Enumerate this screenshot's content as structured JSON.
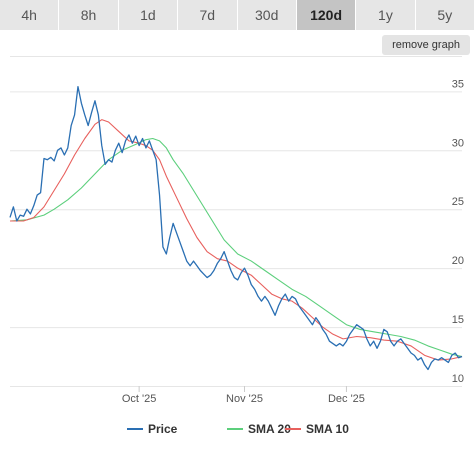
{
  "ranges": {
    "tabs": [
      "4h",
      "8h",
      "1d",
      "7d",
      "30d",
      "120d",
      "1y",
      "5y"
    ],
    "active": "120d"
  },
  "controls": {
    "remove_graph_label": "remove graph"
  },
  "colors": {
    "price": "#2a6fb3",
    "sma20": "#5ccf7c",
    "sma10": "#e8605d",
    "grid": "#e6e6e6",
    "axis_text": "#555555"
  },
  "chart_data": {
    "type": "line",
    "x_axis": {
      "type": "date",
      "min": "2025-08-24",
      "max": "2026-01-04",
      "ticks": [
        {
          "x": "2025-10-01",
          "label": "Oct '25"
        },
        {
          "x": "2025-11-01",
          "label": "Nov '25"
        },
        {
          "x": "2025-12-01",
          "label": "Dec '25"
        }
      ]
    },
    "y_axis": {
      "min": 10,
      "max": 38,
      "ticks": [
        10,
        15,
        20,
        25,
        30,
        35
      ],
      "position": "right"
    },
    "grid": true,
    "legend": "bottom",
    "series": [
      {
        "name": "Price",
        "color": "#2a6fb3",
        "points": [
          [
            "2025-08-24",
            24.3
          ],
          [
            "2025-08-25",
            25.2
          ],
          [
            "2025-08-26",
            24.0
          ],
          [
            "2025-08-27",
            24.5
          ],
          [
            "2025-08-28",
            24.4
          ],
          [
            "2025-08-29",
            25.0
          ],
          [
            "2025-08-30",
            24.6
          ],
          [
            "2025-08-31",
            25.3
          ],
          [
            "2025-09-01",
            26.2
          ],
          [
            "2025-09-02",
            26.4
          ],
          [
            "2025-09-03",
            29.3
          ],
          [
            "2025-09-04",
            29.2
          ],
          [
            "2025-09-05",
            29.4
          ],
          [
            "2025-09-06",
            29.1
          ],
          [
            "2025-09-07",
            30.0
          ],
          [
            "2025-09-08",
            30.2
          ],
          [
            "2025-09-09",
            29.6
          ],
          [
            "2025-09-10",
            30.2
          ],
          [
            "2025-09-11",
            32.1
          ],
          [
            "2025-09-12",
            33.0
          ],
          [
            "2025-09-13",
            35.4
          ],
          [
            "2025-09-14",
            34.0
          ],
          [
            "2025-09-15",
            33.0
          ],
          [
            "2025-09-16",
            32.1
          ],
          [
            "2025-09-17",
            33.2
          ],
          [
            "2025-09-18",
            34.2
          ],
          [
            "2025-09-19",
            33.0
          ],
          [
            "2025-09-20",
            30.4
          ],
          [
            "2025-09-21",
            28.8
          ],
          [
            "2025-09-22",
            29.2
          ],
          [
            "2025-09-23",
            29.0
          ],
          [
            "2025-09-24",
            30.0
          ],
          [
            "2025-09-25",
            30.6
          ],
          [
            "2025-09-26",
            29.8
          ],
          [
            "2025-09-27",
            30.8
          ],
          [
            "2025-09-28",
            31.3
          ],
          [
            "2025-09-29",
            30.6
          ],
          [
            "2025-09-30",
            31.2
          ],
          [
            "2025-10-01",
            30.4
          ],
          [
            "2025-10-02",
            31.0
          ],
          [
            "2025-10-03",
            30.2
          ],
          [
            "2025-10-04",
            30.8
          ],
          [
            "2025-10-05",
            30.0
          ],
          [
            "2025-10-06",
            29.2
          ],
          [
            "2025-10-07",
            26.2
          ],
          [
            "2025-10-08",
            21.8
          ],
          [
            "2025-10-09",
            21.2
          ],
          [
            "2025-10-10",
            22.6
          ],
          [
            "2025-10-11",
            23.8
          ],
          [
            "2025-10-12",
            23.0
          ],
          [
            "2025-10-13",
            22.2
          ],
          [
            "2025-10-14",
            21.4
          ],
          [
            "2025-10-15",
            20.6
          ],
          [
            "2025-10-16",
            20.2
          ],
          [
            "2025-10-17",
            20.6
          ],
          [
            "2025-10-18",
            20.2
          ],
          [
            "2025-10-19",
            19.8
          ],
          [
            "2025-10-20",
            19.5
          ],
          [
            "2025-10-21",
            19.2
          ],
          [
            "2025-10-22",
            19.4
          ],
          [
            "2025-10-23",
            19.8
          ],
          [
            "2025-10-24",
            20.4
          ],
          [
            "2025-10-25",
            20.8
          ],
          [
            "2025-10-26",
            21.4
          ],
          [
            "2025-10-27",
            20.6
          ],
          [
            "2025-10-28",
            19.8
          ],
          [
            "2025-10-29",
            19.2
          ],
          [
            "2025-10-30",
            19.0
          ],
          [
            "2025-10-31",
            19.6
          ],
          [
            "2025-11-01",
            20.0
          ],
          [
            "2025-11-02",
            19.4
          ],
          [
            "2025-11-03",
            18.6
          ],
          [
            "2025-11-04",
            18.2
          ],
          [
            "2025-11-05",
            17.6
          ],
          [
            "2025-11-06",
            17.2
          ],
          [
            "2025-11-07",
            17.6
          ],
          [
            "2025-11-08",
            17.2
          ],
          [
            "2025-11-09",
            16.6
          ],
          [
            "2025-11-10",
            16.0
          ],
          [
            "2025-11-11",
            16.8
          ],
          [
            "2025-11-12",
            17.4
          ],
          [
            "2025-11-13",
            17.8
          ],
          [
            "2025-11-14",
            17.2
          ],
          [
            "2025-11-15",
            17.6
          ],
          [
            "2025-11-16",
            17.4
          ],
          [
            "2025-11-17",
            16.8
          ],
          [
            "2025-11-18",
            16.4
          ],
          [
            "2025-11-19",
            16.0
          ],
          [
            "2025-11-20",
            15.6
          ],
          [
            "2025-11-21",
            15.2
          ],
          [
            "2025-11-22",
            15.8
          ],
          [
            "2025-11-23",
            15.4
          ],
          [
            "2025-11-24",
            14.8
          ],
          [
            "2025-11-25",
            14.4
          ],
          [
            "2025-11-26",
            13.8
          ],
          [
            "2025-11-27",
            13.6
          ],
          [
            "2025-11-28",
            13.4
          ],
          [
            "2025-11-29",
            13.6
          ],
          [
            "2025-11-30",
            13.4
          ],
          [
            "2025-12-01",
            13.8
          ],
          [
            "2025-12-02",
            14.4
          ],
          [
            "2025-12-03",
            14.8
          ],
          [
            "2025-12-04",
            15.2
          ],
          [
            "2025-12-05",
            15.0
          ],
          [
            "2025-12-06",
            14.8
          ],
          [
            "2025-12-07",
            14.0
          ],
          [
            "2025-12-08",
            13.4
          ],
          [
            "2025-12-09",
            13.8
          ],
          [
            "2025-12-10",
            13.2
          ],
          [
            "2025-12-11",
            13.8
          ],
          [
            "2025-12-12",
            14.8
          ],
          [
            "2025-12-13",
            14.6
          ],
          [
            "2025-12-14",
            13.8
          ],
          [
            "2025-12-15",
            13.4
          ],
          [
            "2025-12-16",
            13.8
          ],
          [
            "2025-12-17",
            14.0
          ],
          [
            "2025-12-18",
            13.6
          ],
          [
            "2025-12-19",
            13.2
          ],
          [
            "2025-12-20",
            12.8
          ],
          [
            "2025-12-21",
            12.6
          ],
          [
            "2025-12-22",
            12.2
          ],
          [
            "2025-12-23",
            12.4
          ],
          [
            "2025-12-24",
            11.8
          ],
          [
            "2025-12-25",
            11.4
          ],
          [
            "2025-12-26",
            12.0
          ],
          [
            "2025-12-27",
            12.3
          ],
          [
            "2025-12-28",
            12.2
          ],
          [
            "2025-12-29",
            12.4
          ],
          [
            "2025-12-30",
            12.2
          ],
          [
            "2025-12-31",
            12.0
          ],
          [
            "2026-01-01",
            12.6
          ],
          [
            "2026-01-02",
            12.8
          ],
          [
            "2026-01-03",
            12.4
          ],
          [
            "2026-01-04",
            12.5
          ]
        ]
      },
      {
        "name": "SMA 20",
        "color": "#5ccf7c",
        "points": [
          [
            "2025-08-24",
            24.0
          ],
          [
            "2025-08-29",
            24.1
          ],
          [
            "2025-09-03",
            24.5
          ],
          [
            "2025-09-06",
            25.0
          ],
          [
            "2025-09-10",
            25.8
          ],
          [
            "2025-09-14",
            26.8
          ],
          [
            "2025-09-18",
            28.0
          ],
          [
            "2025-09-22",
            29.2
          ],
          [
            "2025-09-26",
            30.0
          ],
          [
            "2025-09-30",
            30.5
          ],
          [
            "2025-10-03",
            30.9
          ],
          [
            "2025-10-05",
            31.0
          ],
          [
            "2025-10-07",
            30.8
          ],
          [
            "2025-10-09",
            30.2
          ],
          [
            "2025-10-11",
            29.2
          ],
          [
            "2025-10-14",
            28.0
          ],
          [
            "2025-10-17",
            26.6
          ],
          [
            "2025-10-20",
            25.2
          ],
          [
            "2025-10-23",
            23.8
          ],
          [
            "2025-10-26",
            22.4
          ],
          [
            "2025-10-30",
            21.2
          ],
          [
            "2025-11-03",
            20.6
          ],
          [
            "2025-11-07",
            19.8
          ],
          [
            "2025-11-11",
            19.0
          ],
          [
            "2025-11-15",
            18.2
          ],
          [
            "2025-11-19",
            17.6
          ],
          [
            "2025-11-23",
            16.8
          ],
          [
            "2025-11-27",
            16.0
          ],
          [
            "2025-12-01",
            15.2
          ],
          [
            "2025-12-05",
            14.8
          ],
          [
            "2025-12-09",
            14.6
          ],
          [
            "2025-12-13",
            14.4
          ],
          [
            "2025-12-17",
            14.2
          ],
          [
            "2025-12-21",
            13.9
          ],
          [
            "2025-12-25",
            13.4
          ],
          [
            "2025-12-29",
            13.0
          ],
          [
            "2026-01-01",
            12.7
          ],
          [
            "2026-01-04",
            12.5
          ]
        ]
      },
      {
        "name": "SMA 10",
        "color": "#e8605d",
        "points": [
          [
            "2025-08-24",
            24.0
          ],
          [
            "2025-08-28",
            24.0
          ],
          [
            "2025-08-31",
            24.3
          ],
          [
            "2025-09-03",
            25.2
          ],
          [
            "2025-09-06",
            26.6
          ],
          [
            "2025-09-09",
            28.0
          ],
          [
            "2025-09-12",
            29.6
          ],
          [
            "2025-09-15",
            31.0
          ],
          [
            "2025-09-18",
            32.2
          ],
          [
            "2025-09-20",
            32.6
          ],
          [
            "2025-09-22",
            32.4
          ],
          [
            "2025-09-25",
            31.6
          ],
          [
            "2025-09-28",
            30.8
          ],
          [
            "2025-10-01",
            30.6
          ],
          [
            "2025-10-03",
            30.4
          ],
          [
            "2025-10-05",
            30.0
          ],
          [
            "2025-10-07",
            29.2
          ],
          [
            "2025-10-09",
            27.8
          ],
          [
            "2025-10-12",
            26.0
          ],
          [
            "2025-10-15",
            24.2
          ],
          [
            "2025-10-18",
            22.6
          ],
          [
            "2025-10-21",
            21.4
          ],
          [
            "2025-10-24",
            20.8
          ],
          [
            "2025-10-27",
            20.6
          ],
          [
            "2025-10-30",
            20.0
          ],
          [
            "2025-11-03",
            19.4
          ],
          [
            "2025-11-06",
            18.6
          ],
          [
            "2025-11-09",
            17.8
          ],
          [
            "2025-11-12",
            17.4
          ],
          [
            "2025-11-15",
            17.2
          ],
          [
            "2025-11-18",
            16.6
          ],
          [
            "2025-11-21",
            15.8
          ],
          [
            "2025-11-24",
            15.0
          ],
          [
            "2025-11-27",
            14.4
          ],
          [
            "2025-11-30",
            14.0
          ],
          [
            "2025-12-04",
            14.2
          ],
          [
            "2025-12-08",
            14.1
          ],
          [
            "2025-12-12",
            13.9
          ],
          [
            "2025-12-16",
            13.8
          ],
          [
            "2025-12-20",
            13.4
          ],
          [
            "2025-12-24",
            12.6
          ],
          [
            "2025-12-28",
            12.2
          ],
          [
            "2026-01-01",
            12.3
          ],
          [
            "2026-01-04",
            12.5
          ]
        ]
      }
    ]
  }
}
